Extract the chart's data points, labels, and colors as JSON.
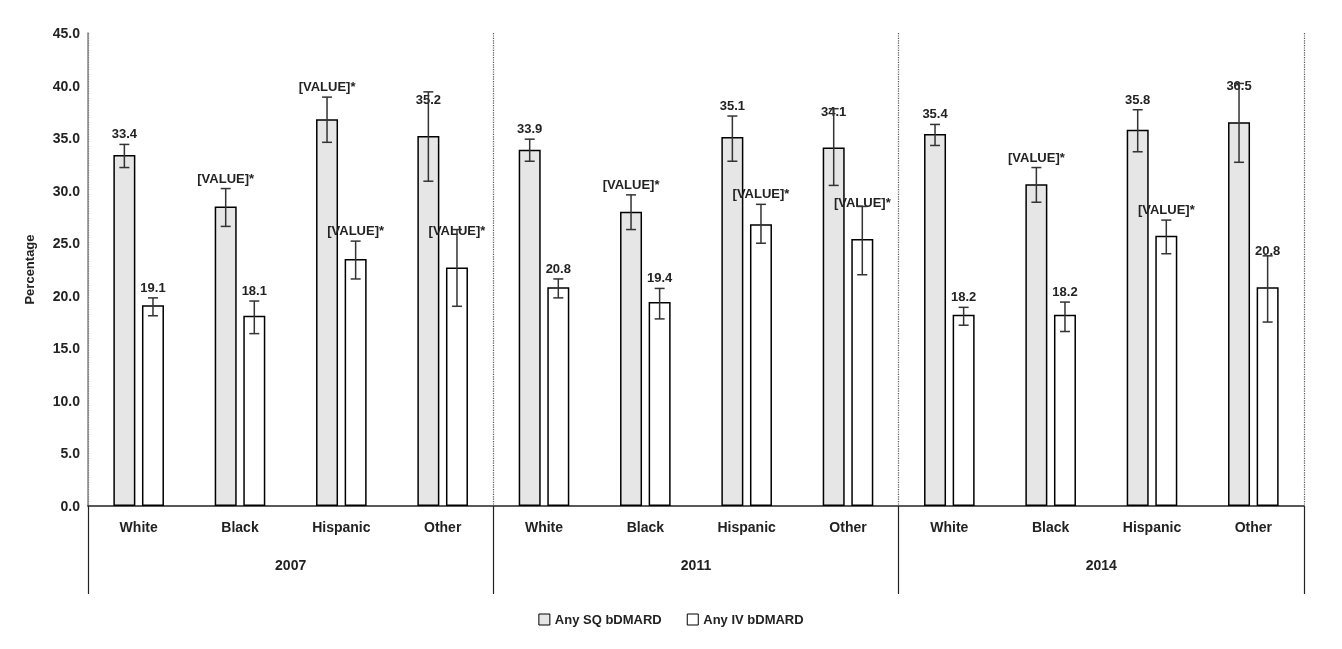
{
  "chart_data": {
    "type": "bar",
    "ylabel": "Percentage",
    "categories": [
      "White",
      "Black",
      "Hispanic",
      "Other",
      "White",
      "Black",
      "Hispanic",
      "Other",
      "White",
      "Black",
      "Hispanic",
      "Other"
    ],
    "annotations": [
      "2007",
      "2011",
      "2014"
    ],
    "series": [
      {
        "name": "Any SQ bDMARD",
        "color": "#e6e6e6",
        "values": [
          33.4,
          28.5,
          36.8,
          35.2,
          33.9,
          28.0,
          35.1,
          34.1,
          35.4,
          30.6,
          35.8,
          36.5
        ],
        "errors": [
          [
            32.2,
            34.4
          ],
          [
            26.6,
            30.2
          ],
          [
            34.6,
            38.9
          ],
          [
            30.9,
            39.4
          ],
          [
            32.8,
            34.9
          ],
          [
            26.3,
            29.6
          ],
          [
            32.8,
            37.1
          ],
          [
            30.5,
            37.8
          ],
          [
            34.3,
            36.3
          ],
          [
            28.9,
            32.2
          ],
          [
            33.7,
            37.7
          ],
          [
            32.7,
            40.2
          ]
        ],
        "value_labels": [
          "33.4",
          "[VALUE]*",
          "[VALUE]*",
          "35.2",
          "33.9",
          "[VALUE]*",
          "35.1",
          "34.1",
          "35.4",
          "[VALUE]*",
          "35.8",
          "36.5"
        ]
      },
      {
        "name": "Any IV bDMARD",
        "color": "#ffffff",
        "values": [
          19.1,
          18.1,
          23.5,
          22.7,
          20.8,
          19.4,
          26.8,
          25.4,
          18.2,
          18.2,
          25.7,
          20.8
        ],
        "errors": [
          [
            18.1,
            19.8
          ],
          [
            16.4,
            19.5
          ],
          [
            21.6,
            25.2
          ],
          [
            19.0,
            26.3
          ],
          [
            19.8,
            21.6
          ],
          [
            17.8,
            20.7
          ],
          [
            25.0,
            28.7
          ],
          [
            22.0,
            28.5
          ],
          [
            17.2,
            18.9
          ],
          [
            16.6,
            19.4
          ],
          [
            24.0,
            27.2
          ],
          [
            17.5,
            23.8
          ]
        ],
        "value_labels": [
          "19.1",
          "18.1",
          "[VALUE]*",
          "[VALUE]*",
          "20.8",
          "19.4",
          "[VALUE]*",
          "[VALUE]*",
          "18.2",
          "18.2",
          "[VALUE]*",
          "20.8"
        ]
      }
    ],
    "ylim": [
      0,
      45
    ],
    "yticks": [
      {
        "value": 0,
        "label": "0.0"
      },
      {
        "value": 5,
        "label": "5.0"
      },
      {
        "value": 10,
        "label": "10.0"
      },
      {
        "value": 15,
        "label": "15.0"
      },
      {
        "value": 20,
        "label": "20.0"
      },
      {
        "value": 25,
        "label": "25.0"
      },
      {
        "value": 30,
        "label": "30.0"
      },
      {
        "value": 35,
        "label": "35.0"
      },
      {
        "value": 40,
        "label": "40.0"
      },
      {
        "value": 45,
        "label": "45.0"
      }
    ],
    "grid": false,
    "legend": "bottom"
  }
}
